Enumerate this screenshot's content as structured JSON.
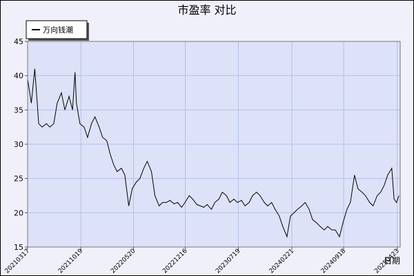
{
  "chart_data": {
    "type": "line",
    "title": "市盈率  对比",
    "x_label": "日期",
    "x": [
      "20210317",
      "20210401",
      "20210415",
      "20210501",
      "20210515",
      "20210601",
      "20210615",
      "20210701",
      "20210715",
      "20210801",
      "20210815",
      "20210901",
      "20210915",
      "20210925",
      "20211001",
      "20211015",
      "20211101",
      "20211115",
      "20211201",
      "20211215",
      "20220101",
      "20220115",
      "20220201",
      "20220215",
      "20220301",
      "20220315",
      "20220401",
      "20220415",
      "20220501",
      "20220515",
      "20220601",
      "20220615",
      "20220701",
      "20220715",
      "20220801",
      "20220815",
      "20220901",
      "20220915",
      "20221001",
      "20221015",
      "20221101",
      "20221115",
      "20221201",
      "20221215",
      "20230101",
      "20230115",
      "20230201",
      "20230215",
      "20230301",
      "20230315",
      "20230401",
      "20230415",
      "20230501",
      "20230515",
      "20230601",
      "20230615",
      "20230701",
      "20230715",
      "20230801",
      "20230815",
      "20230901",
      "20230915",
      "20231001",
      "20231015",
      "20231101",
      "20231115",
      "20231201",
      "20231215",
      "20240101",
      "20240115",
      "20240201",
      "20240215",
      "20240301",
      "20240315",
      "20240401",
      "20240415",
      "20240501",
      "20240515",
      "20240601",
      "20240615",
      "20240701",
      "20240715",
      "20240801",
      "20240815",
      "20240901",
      "20240915",
      "20241001",
      "20241015",
      "20241101",
      "20241115",
      "20241201",
      "20241215",
      "20250101",
      "20250115",
      "20250201",
      "20250215",
      "20250301",
      "20250315",
      "20250401",
      "20250410",
      "20250420",
      "20250430"
    ],
    "series": [
      {
        "name": "万向钱潮",
        "color": "#000000",
        "values": [
          39.5,
          36,
          41,
          33,
          32.5,
          33,
          32.5,
          33,
          36,
          37.5,
          35,
          37,
          35,
          40.5,
          36,
          33,
          32.5,
          31,
          33,
          34,
          32.5,
          31,
          30.5,
          28.5,
          27,
          26,
          26.5,
          25.5,
          21,
          23.5,
          24.5,
          25,
          26.5,
          27.5,
          26,
          22.5,
          21,
          21.5,
          21.5,
          21.8,
          21.3,
          21.5,
          20.8,
          21.5,
          22.5,
          22,
          21.2,
          21,
          20.8,
          21.2,
          20.5,
          21.5,
          22,
          23,
          22.5,
          21.5,
          22,
          21.5,
          21.8,
          21,
          21.5,
          22.5,
          23,
          22.5,
          21.5,
          21,
          21.5,
          20.5,
          19.5,
          18,
          16.5,
          19.5,
          20,
          20.5,
          21,
          21.5,
          20.5,
          19,
          18.5,
          18,
          17.5,
          18,
          17.5,
          17.5,
          16.5,
          18.5,
          20.5,
          21.5,
          25.5,
          23.5,
          23,
          22.5,
          21.5,
          21,
          22.5,
          23,
          24,
          25.5,
          26.5,
          22,
          21.5,
          22.5
        ]
      }
    ],
    "ylim": [
      15,
      45
    ],
    "yticks": [
      15,
      20,
      25,
      30,
      35,
      40,
      45
    ],
    "xlim": [
      "20210317",
      "20250505"
    ],
    "xticks": [
      "20210317",
      "20211019",
      "20220520",
      "20221216",
      "20230719",
      "20240221",
      "20240918",
      "20250423"
    ],
    "grid": true,
    "legend": "upper left"
  }
}
